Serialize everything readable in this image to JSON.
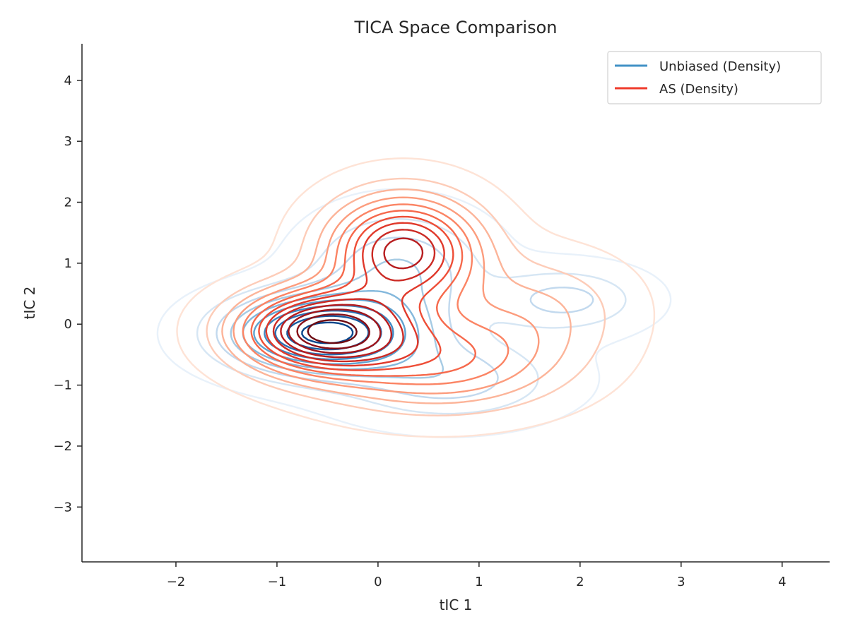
{
  "chart_data": {
    "type": "contour",
    "title": "TICA Space Comparison",
    "xlabel": "tIC 1",
    "ylabel": "tIC 2",
    "xlim": [
      -2.93,
      4.47
    ],
    "ylim": [
      -3.9,
      4.6
    ],
    "xticks": [
      -2,
      -1,
      0,
      1,
      2,
      3,
      4
    ],
    "yticks": [
      -3,
      -2,
      -1,
      0,
      1,
      2,
      3,
      4
    ],
    "xtick_labels": [
      "−2",
      "−1",
      "0",
      "1",
      "2",
      "3",
      "4"
    ],
    "ytick_labels": [
      "−3",
      "−2",
      "−1",
      "0",
      "1",
      "2",
      "3",
      "4"
    ],
    "grid": false,
    "legend_position": "top-right",
    "series": [
      {
        "name": "Unbiased (Density)",
        "color": "#4292c6",
        "levels": 10,
        "components": [
          {
            "mean": [
              -0.55,
              -0.15
            ],
            "sd": [
              0.62,
              0.42
            ],
            "weight": 1.0
          },
          {
            "mean": [
              0.2,
              0.9
            ],
            "sd": [
              0.55,
              0.6
            ],
            "weight": 0.35
          },
          {
            "mean": [
              1.85,
              0.4
            ],
            "sd": [
              0.5,
              0.35
            ],
            "weight": 0.28
          },
          {
            "mean": [
              0.7,
              -0.9
            ],
            "sd": [
              0.7,
              0.45
            ],
            "weight": 0.3
          }
        ],
        "level_colors": [
          "#e8f1fa",
          "#d6e6f4",
          "#c2d9ee",
          "#a6cbe4",
          "#84b8dc",
          "#5fa2d0",
          "#3e88c3",
          "#2a6fb2",
          "#175a9f",
          "#08468b"
        ]
      },
      {
        "name": "AS (Density)",
        "color": "#ef3b2c",
        "levels": 13,
        "components": [
          {
            "mean": [
              -0.55,
              -0.1
            ],
            "sd": [
              0.55,
              0.45
            ],
            "weight": 1.0
          },
          {
            "mean": [
              0.25,
              1.2
            ],
            "sd": [
              0.5,
              0.6
            ],
            "weight": 0.85
          },
          {
            "mean": [
              0.6,
              -0.6
            ],
            "sd": [
              0.8,
              0.55
            ],
            "weight": 0.45
          },
          {
            "mean": [
              1.6,
              0.3
            ],
            "sd": [
              0.6,
              0.6
            ],
            "weight": 0.18
          }
        ],
        "level_colors": [
          "#fee3d6",
          "#fdccb8",
          "#fcb499",
          "#fc9c7d",
          "#fb8464",
          "#f6694c",
          "#ee4e37",
          "#e0392b",
          "#cb2a24",
          "#b71d1f",
          "#a0151b",
          "#880f17",
          "#6d0a12"
        ]
      }
    ]
  }
}
